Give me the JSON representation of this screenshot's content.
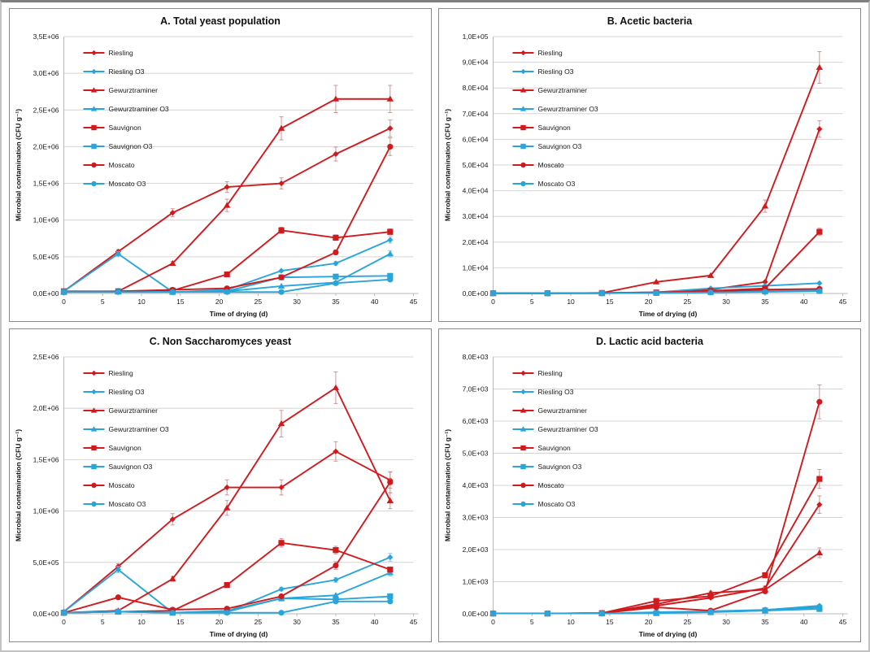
{
  "figure": {
    "x_label": "Time of drying (d)",
    "y_label": "Microbial contamination (CFU g⁻¹)",
    "x_ticks": [
      "0",
      "5",
      "10",
      "15",
      "20",
      "25",
      "30",
      "35",
      "40",
      "45"
    ],
    "x_tick_values": [
      0,
      5,
      10,
      15,
      20,
      25,
      30,
      35,
      40,
      45
    ],
    "x_max": 45,
    "x_values": [
      0,
      7,
      14,
      21,
      28,
      35,
      42
    ]
  },
  "colors": {
    "red": "#d11a1e",
    "blue": "#2aa5d9",
    "red_err": "#cf9595",
    "blue_err": "#8ec9e2",
    "grid": "#d4d4d4",
    "axis": "#b8b8b8",
    "text": "#1a1a1a"
  },
  "chart_data": [
    {
      "type": "line",
      "id": "A",
      "title": "A. Total yeast population",
      "xlabel": "Time of drying (d)",
      "ylabel": "Microbial contamination (CFU g⁻¹)",
      "ylim": [
        0,
        3500000
      ],
      "ytick_labels": [
        "0,0E+00",
        "5,0E+05",
        "1,0E+06",
        "1,5E+06",
        "2,0E+06",
        "2,5E+06",
        "3,0E+06",
        "3,5E+06"
      ],
      "x": [
        0,
        7,
        14,
        21,
        28,
        35,
        42
      ],
      "series": [
        {
          "name": "Riesling",
          "color": "red",
          "marker": "diamond",
          "err": 0.05,
          "values": [
            30000,
            570000,
            1100000,
            1450000,
            1500000,
            1900000,
            2250000
          ]
        },
        {
          "name": "Riesling O3",
          "color": "blue",
          "marker": "diamond",
          "err": 0.06,
          "values": [
            30000,
            540000,
            20000,
            50000,
            310000,
            410000,
            730000
          ]
        },
        {
          "name": "Gewurztraminer",
          "color": "red",
          "marker": "triangle",
          "err": 0.07,
          "values": [
            20000,
            30000,
            410000,
            1200000,
            2250000,
            2650000,
            2650000
          ]
        },
        {
          "name": "Gewurztraminer O3",
          "color": "blue",
          "marker": "triangle",
          "err": 0.08,
          "values": [
            20000,
            20000,
            20000,
            30000,
            100000,
            150000,
            540000
          ]
        },
        {
          "name": "Sauvignon",
          "color": "red",
          "marker": "square",
          "err": 0.05,
          "values": [
            30000,
            30000,
            40000,
            260000,
            860000,
            760000,
            840000
          ]
        },
        {
          "name": "Sauvignon O3",
          "color": "blue",
          "marker": "square",
          "err": 0.06,
          "values": [
            20000,
            30000,
            20000,
            30000,
            220000,
            230000,
            240000
          ]
        },
        {
          "name": "Moscato",
          "color": "red",
          "marker": "circle",
          "err": 0.06,
          "values": [
            20000,
            30000,
            50000,
            70000,
            220000,
            560000,
            2000000
          ]
        },
        {
          "name": "Moscato O3",
          "color": "blue",
          "marker": "circle",
          "err": 0.06,
          "values": [
            20000,
            20000,
            20000,
            20000,
            20000,
            140000,
            190000
          ]
        }
      ]
    },
    {
      "type": "line",
      "id": "B",
      "title": "B. Acetic bacteria",
      "xlabel": "Time of drying (d)",
      "ylabel": "Microbial contamination (CFU g⁻¹)",
      "ylim": [
        0,
        100000
      ],
      "ytick_labels": [
        "0,0E+00",
        "1,0E+04",
        "2,0E+04",
        "3,0E+04",
        "4,0E+04",
        "5,0E+04",
        "6,0E+04",
        "7,0E+04",
        "8,0E+04",
        "9,0E+04",
        "1,0E+05"
      ],
      "x": [
        0,
        7,
        14,
        21,
        28,
        35,
        42
      ],
      "series": [
        {
          "name": "Riesling",
          "color": "red",
          "marker": "diamond",
          "err": 0.05,
          "values": [
            100,
            100,
            200,
            500,
            1500,
            4500,
            64000
          ]
        },
        {
          "name": "Riesling O3",
          "color": "blue",
          "marker": "diamond",
          "err": 0.1,
          "values": [
            100,
            100,
            100,
            500,
            2000,
            3000,
            4000
          ]
        },
        {
          "name": "Gewurztraminer",
          "color": "red",
          "marker": "triangle",
          "err": 0.07,
          "values": [
            100,
            100,
            200,
            4500,
            7000,
            34000,
            88000
          ]
        },
        {
          "name": "Gewurztraminer O3",
          "color": "blue",
          "marker": "triangle",
          "err": 0.1,
          "values": [
            100,
            100,
            100,
            300,
            800,
            1200,
            1500
          ]
        },
        {
          "name": "Sauvignon",
          "color": "red",
          "marker": "square",
          "err": 0.06,
          "values": [
            100,
            100,
            200,
            400,
            1000,
            2000,
            24000
          ]
        },
        {
          "name": "Sauvignon O3",
          "color": "blue",
          "marker": "square",
          "err": 0.1,
          "values": [
            100,
            100,
            100,
            200,
            500,
            800,
            1000
          ]
        },
        {
          "name": "Moscato",
          "color": "red",
          "marker": "circle",
          "err": 0.1,
          "values": [
            100,
            100,
            100,
            300,
            800,
            1500,
            1800
          ]
        },
        {
          "name": "Moscato O3",
          "color": "blue",
          "marker": "circle",
          "err": 0.1,
          "values": [
            100,
            100,
            100,
            200,
            400,
            600,
            900
          ]
        }
      ]
    },
    {
      "type": "line",
      "id": "C",
      "title": "C. Non Saccharomyces yeast",
      "xlabel": "Time of drying (d)",
      "ylabel": "Microbial contamination (CFU g⁻¹)",
      "ylim": [
        0,
        2500000
      ],
      "ytick_labels": [
        "0,0E+00",
        "5,0E+05",
        "1,0E+06",
        "1,5E+06",
        "2,0E+06",
        "2,5E+06"
      ],
      "x": [
        0,
        7,
        14,
        21,
        28,
        35,
        42
      ],
      "series": [
        {
          "name": "Riesling",
          "color": "red",
          "marker": "diamond",
          "err": 0.06,
          "values": [
            20000,
            460000,
            920000,
            1230000,
            1230000,
            1580000,
            1300000
          ]
        },
        {
          "name": "Riesling O3",
          "color": "blue",
          "marker": "diamond",
          "err": 0.07,
          "values": [
            20000,
            430000,
            10000,
            20000,
            240000,
            330000,
            550000
          ]
        },
        {
          "name": "Gewurztraminer",
          "color": "red",
          "marker": "triangle",
          "err": 0.07,
          "values": [
            10000,
            30000,
            340000,
            1030000,
            1850000,
            2200000,
            1100000
          ]
        },
        {
          "name": "Gewurztraminer O3",
          "color": "blue",
          "marker": "triangle",
          "err": 0.08,
          "values": [
            10000,
            20000,
            10000,
            30000,
            150000,
            180000,
            400000
          ]
        },
        {
          "name": "Sauvignon",
          "color": "red",
          "marker": "square",
          "err": 0.06,
          "values": [
            10000,
            20000,
            30000,
            280000,
            690000,
            620000,
            430000
          ]
        },
        {
          "name": "Sauvignon O3",
          "color": "blue",
          "marker": "square",
          "err": 0.06,
          "values": [
            10000,
            20000,
            10000,
            20000,
            150000,
            140000,
            170000
          ]
        },
        {
          "name": "Moscato",
          "color": "red",
          "marker": "circle",
          "err": 0.08,
          "values": [
            10000,
            160000,
            40000,
            50000,
            170000,
            470000,
            1280000
          ]
        },
        {
          "name": "Moscato O3",
          "color": "blue",
          "marker": "circle",
          "err": 0.06,
          "values": [
            10000,
            20000,
            10000,
            10000,
            10000,
            120000,
            120000
          ]
        }
      ]
    },
    {
      "type": "line",
      "id": "D",
      "title": "D. Lactic acid bacteria",
      "xlabel": "Time of drying (d)",
      "ylabel": "Microbial contamination (CFU g⁻¹)",
      "ylim": [
        0,
        8000
      ],
      "ytick_labels": [
        "0,0E+00",
        "1,0E+03",
        "2,0E+03",
        "3,0E+03",
        "4,0E+03",
        "5,0E+03",
        "6,0E+03",
        "7,0E+03",
        "8,0E+03"
      ],
      "x": [
        0,
        7,
        14,
        21,
        28,
        35,
        42
      ],
      "series": [
        {
          "name": "Riesling",
          "color": "red",
          "marker": "diamond",
          "err": 0.08,
          "values": [
            10,
            10,
            20,
            250,
            500,
            800,
            3400
          ]
        },
        {
          "name": "Riesling O3",
          "color": "blue",
          "marker": "diamond",
          "err": 0.15,
          "values": [
            10,
            10,
            10,
            50,
            80,
            120,
            250
          ]
        },
        {
          "name": "Gewurztraminer",
          "color": "red",
          "marker": "triangle",
          "err": 0.08,
          "values": [
            10,
            10,
            20,
            300,
            650,
            750,
            1900
          ]
        },
        {
          "name": "Gewurztraminer O3",
          "color": "blue",
          "marker": "triangle",
          "err": 0.15,
          "values": [
            10,
            10,
            10,
            30,
            60,
            100,
            200
          ]
        },
        {
          "name": "Sauvignon",
          "color": "red",
          "marker": "square",
          "err": 0.07,
          "values": [
            10,
            10,
            20,
            400,
            550,
            1200,
            4200
          ]
        },
        {
          "name": "Sauvignon O3",
          "color": "blue",
          "marker": "square",
          "err": 0.15,
          "values": [
            10,
            10,
            10,
            20,
            50,
            100,
            150
          ]
        },
        {
          "name": "Moscato",
          "color": "red",
          "marker": "circle",
          "err": 0.08,
          "values": [
            10,
            10,
            20,
            200,
            100,
            700,
            6600
          ]
        },
        {
          "name": "Moscato O3",
          "color": "blue",
          "marker": "circle",
          "err": 0.15,
          "values": [
            10,
            10,
            10,
            30,
            60,
            120,
            220
          ]
        }
      ]
    }
  ]
}
